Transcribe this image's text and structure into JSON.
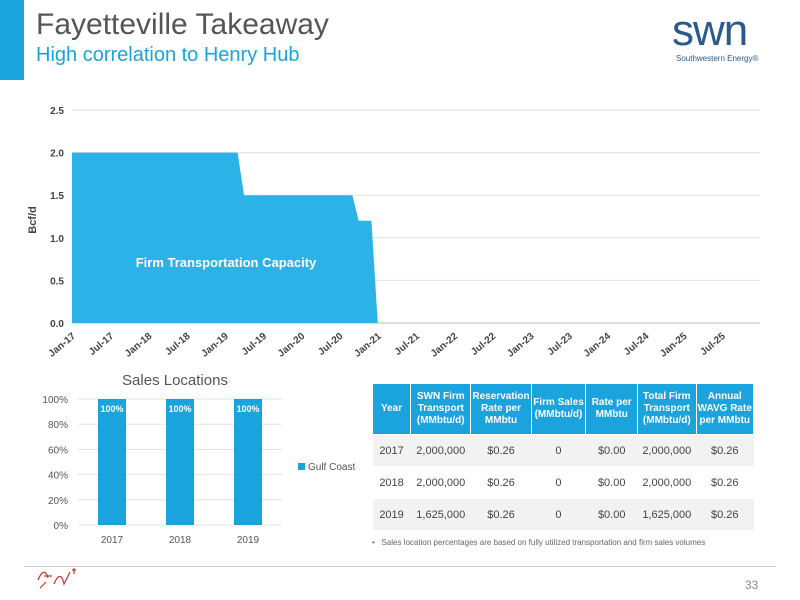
{
  "header": {
    "title": "Fayetteville Takeaway",
    "subtitle": "High correlation to Henry Hub",
    "logo_text": "swn",
    "logo_sub": "Southwestern Energy®",
    "colors": {
      "accent": "#1aa3dd",
      "logo": "#2a5a8a"
    }
  },
  "chart_data": [
    {
      "type": "area",
      "ylabel": "Bcf/d",
      "ylim": [
        0,
        2.5
      ],
      "yticks": [
        "0.0",
        "0.5",
        "1.0",
        "1.5",
        "2.0",
        "2.5"
      ],
      "categories": [
        "Jan-17",
        "Jul-17",
        "Jan-18",
        "Jul-18",
        "Jan-19",
        "Jul-19",
        "Jan-20",
        "Jul-20",
        "Jan-21",
        "Jul-21",
        "Jan-22",
        "Jul-22",
        "Jan-23",
        "Jul-23",
        "Jan-24",
        "Jul-24",
        "Jan-25",
        "Jul-25"
      ],
      "annotation": "Firm Transportation Capacity",
      "series": [
        {
          "name": "Firm Transportation Capacity",
          "color": "#2bb3e8",
          "points": [
            [
              "Jan-17",
              2.0
            ],
            [
              "Mar-19",
              2.0
            ],
            [
              "Apr-19",
              1.5
            ],
            [
              "Sep-20",
              1.5
            ],
            [
              "Oct-20",
              1.2
            ],
            [
              "Dec-20",
              1.2
            ],
            [
              "Jan-21",
              0.0
            ]
          ]
        }
      ]
    },
    {
      "type": "bar",
      "title": "Sales Locations",
      "categories": [
        "2017",
        "2018",
        "2019"
      ],
      "ylim": [
        0,
        100
      ],
      "yticks": [
        "0%",
        "20%",
        "40%",
        "60%",
        "80%",
        "100%"
      ],
      "series": [
        {
          "name": "Gulf Coast",
          "values": [
            100,
            100,
            100
          ],
          "color": "#1aa3dd"
        }
      ],
      "data_labels": [
        "100%",
        "100%",
        "100%"
      ],
      "legend": "right"
    },
    {
      "type": "table",
      "columns": [
        "Year",
        "SWN Firm Transport (MMbtu/d)",
        "Reservation Rate per MMbtu",
        "Firm Sales (MMbtu/d)",
        "Rate per MMbtu",
        "Total Firm Transport (MMbtu/d)",
        "Annual WAVG Rate per MMbtu"
      ],
      "rows": [
        [
          "2017",
          "2,000,000",
          "$0.26",
          "0",
          "$0.00",
          "2,000,000",
          "$0.26"
        ],
        [
          "2018",
          "2,000,000",
          "$0.26",
          "0",
          "$0.00",
          "2,000,000",
          "$0.26"
        ],
        [
          "2019",
          "1,625,000",
          "$0.26",
          "0",
          "$0.00",
          "1,625,000",
          "$0.26"
        ]
      ]
    }
  ],
  "table": {
    "headers": [
      "Year",
      "SWN Firm Transport (MMbtu/d)",
      "Reservation Rate per MMbtu",
      "Firm Sales (MMbtu/d)",
      "Rate per MMbtu",
      "Total Firm Transport (MMbtu/d)",
      "Annual WAVG Rate per MMbtu"
    ],
    "rows": [
      [
        "2017",
        "2,000,000",
        "$0.26",
        "0",
        "$0.00",
        "2,000,000",
        "$0.26"
      ],
      [
        "2018",
        "2,000,000",
        "$0.26",
        "0",
        "$0.00",
        "2,000,000",
        "$0.26"
      ],
      [
        "2019",
        "1,625,000",
        "$0.26",
        "0",
        "$0.00",
        "1,625,000",
        "$0.26"
      ]
    ]
  },
  "note": "Sales location percentages are based on fully utilized transportation and firm sales volumes",
  "page_number": "33"
}
